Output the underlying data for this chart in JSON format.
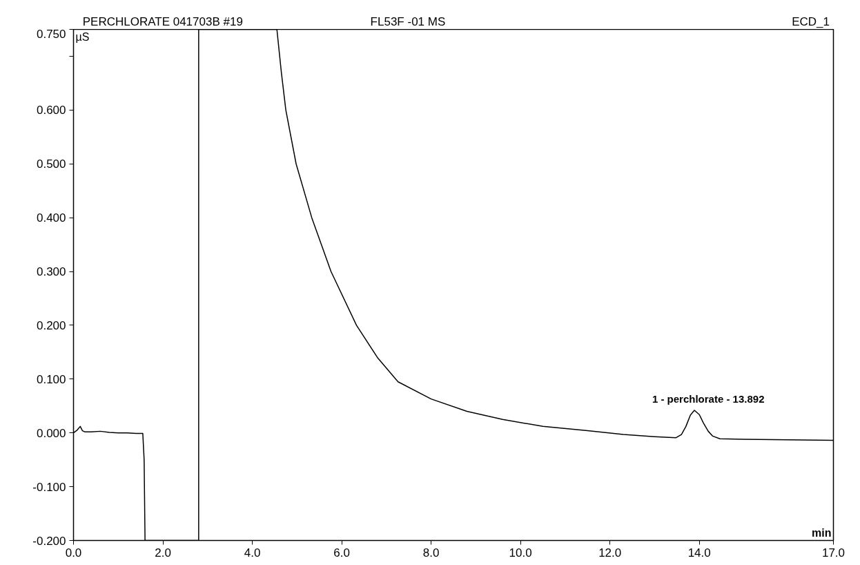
{
  "chart_data": {
    "type": "line",
    "title": "PERCHLORATE 041703B #19",
    "subtitle": "FL53F -01 MS",
    "xlabel": "min",
    "ylabel": "µS",
    "annotations": [
      "ECD_1",
      {
        "text": "1 - perchlorate - 13.892",
        "x": 13.892,
        "y": 0.042
      }
    ],
    "x": [
      0.0,
      0.08,
      0.15,
      0.2,
      0.25,
      0.4,
      0.6,
      0.8,
      1.0,
      1.2,
      1.4,
      1.55,
      1.58,
      1.6,
      2.8,
      2.8,
      4.55,
      4.65,
      4.75,
      4.98,
      5.33,
      5.76,
      6.33,
      6.8,
      7.26,
      8.0,
      8.8,
      9.6,
      10.5,
      11.5,
      12.3,
      13.0,
      13.48,
      13.6,
      13.7,
      13.8,
      13.89,
      14.0,
      14.1,
      14.2,
      14.3,
      14.46,
      15.0,
      16.0,
      17.0
    ],
    "series": [
      {
        "color": "#000000",
        "values": [
          0.0,
          0.005,
          0.012,
          0.004,
          0.002,
          0.002,
          0.003,
          0.001,
          0.0,
          0.0,
          -0.001,
          -0.001,
          -0.05,
          -0.2,
          -0.2,
          0.75,
          0.75,
          0.67,
          0.6,
          0.5,
          0.4,
          0.3,
          0.2,
          0.14,
          0.095,
          0.063,
          0.04,
          0.025,
          0.012,
          0.004,
          -0.003,
          -0.007,
          -0.009,
          -0.003,
          0.012,
          0.033,
          0.042,
          0.034,
          0.017,
          0.003,
          -0.006,
          -0.011,
          -0.012,
          -0.013,
          -0.014
        ]
      }
    ],
    "xlim": [
      0,
      17
    ],
    "ylim": [
      -0.2,
      0.75
    ],
    "xticks": [
      {
        "value": 0,
        "label": "0.0"
      },
      {
        "value": 2,
        "label": "2.0"
      },
      {
        "value": 4,
        "label": "4.0"
      },
      {
        "value": 6,
        "label": "6.0"
      },
      {
        "value": 8,
        "label": "8.0"
      },
      {
        "value": 10,
        "label": "10.0"
      },
      {
        "value": 12,
        "label": "12.0"
      },
      {
        "value": 14,
        "label": "14.0"
      },
      {
        "value": 17,
        "label": "17.0"
      }
    ],
    "yticks": [
      {
        "value": -0.2,
        "label": "-0.200"
      },
      {
        "value": -0.1,
        "label": "-0.100"
      },
      {
        "value": 0,
        "label": "0.000"
      },
      {
        "value": 0.1,
        "label": "0.100"
      },
      {
        "value": 0.2,
        "label": "0.200"
      },
      {
        "value": 0.3,
        "label": "0.300"
      },
      {
        "value": 0.4,
        "label": "0.400"
      },
      {
        "value": 0.5,
        "label": "0.500"
      },
      {
        "value": 0.6,
        "label": "0.600"
      },
      {
        "value": 0.7,
        "label": null
      },
      {
        "value": 0.75,
        "label": "0.750"
      }
    ],
    "grid": false,
    "line_style": "solid"
  }
}
